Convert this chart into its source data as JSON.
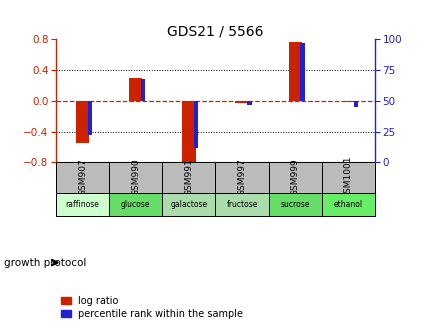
{
  "title": "GDS21 / 5566",
  "samples": [
    "GSM907",
    "GSM990",
    "GSM991",
    "GSM997",
    "GSM999",
    "GSM1001"
  ],
  "conditions": [
    "raffinose",
    "glucose",
    "galactose",
    "fructose",
    "sucrose",
    "ethanol"
  ],
  "log_ratios": [
    -0.55,
    0.3,
    -0.85,
    -0.03,
    0.77,
    -0.02
  ],
  "percentile_ranks": [
    22,
    68,
    12,
    47,
    97,
    45
  ],
  "bar_color_red": "#cc2200",
  "bar_color_blue": "#2222cc",
  "ylim_left": [
    -0.8,
    0.8
  ],
  "ylim_right": [
    0,
    100
  ],
  "yticks_left": [
    -0.8,
    -0.4,
    0,
    0.4,
    0.8
  ],
  "yticks_right": [
    0,
    25,
    50,
    75,
    100
  ],
  "condition_colors": [
    "#ccffcc",
    "#66dd66",
    "#aaddaa",
    "#aaddaa",
    "#66dd66",
    "#66ee66"
  ],
  "gsm_bg_color": "#bbbbbb",
  "growth_protocol_label": "growth protocol",
  "legend_red_label": "log ratio",
  "legend_blue_label": "percentile rank within the sample",
  "red_bar_width": 0.25,
  "blue_bar_width": 0.08,
  "title_color": "#000000",
  "left_axis_color": "#cc2200",
  "right_axis_color": "#2222cc",
  "zero_line_color": "#cc2200",
  "dotted_line_color": "#333333",
  "figsize": [
    4.31,
    3.27
  ],
  "dpi": 100
}
